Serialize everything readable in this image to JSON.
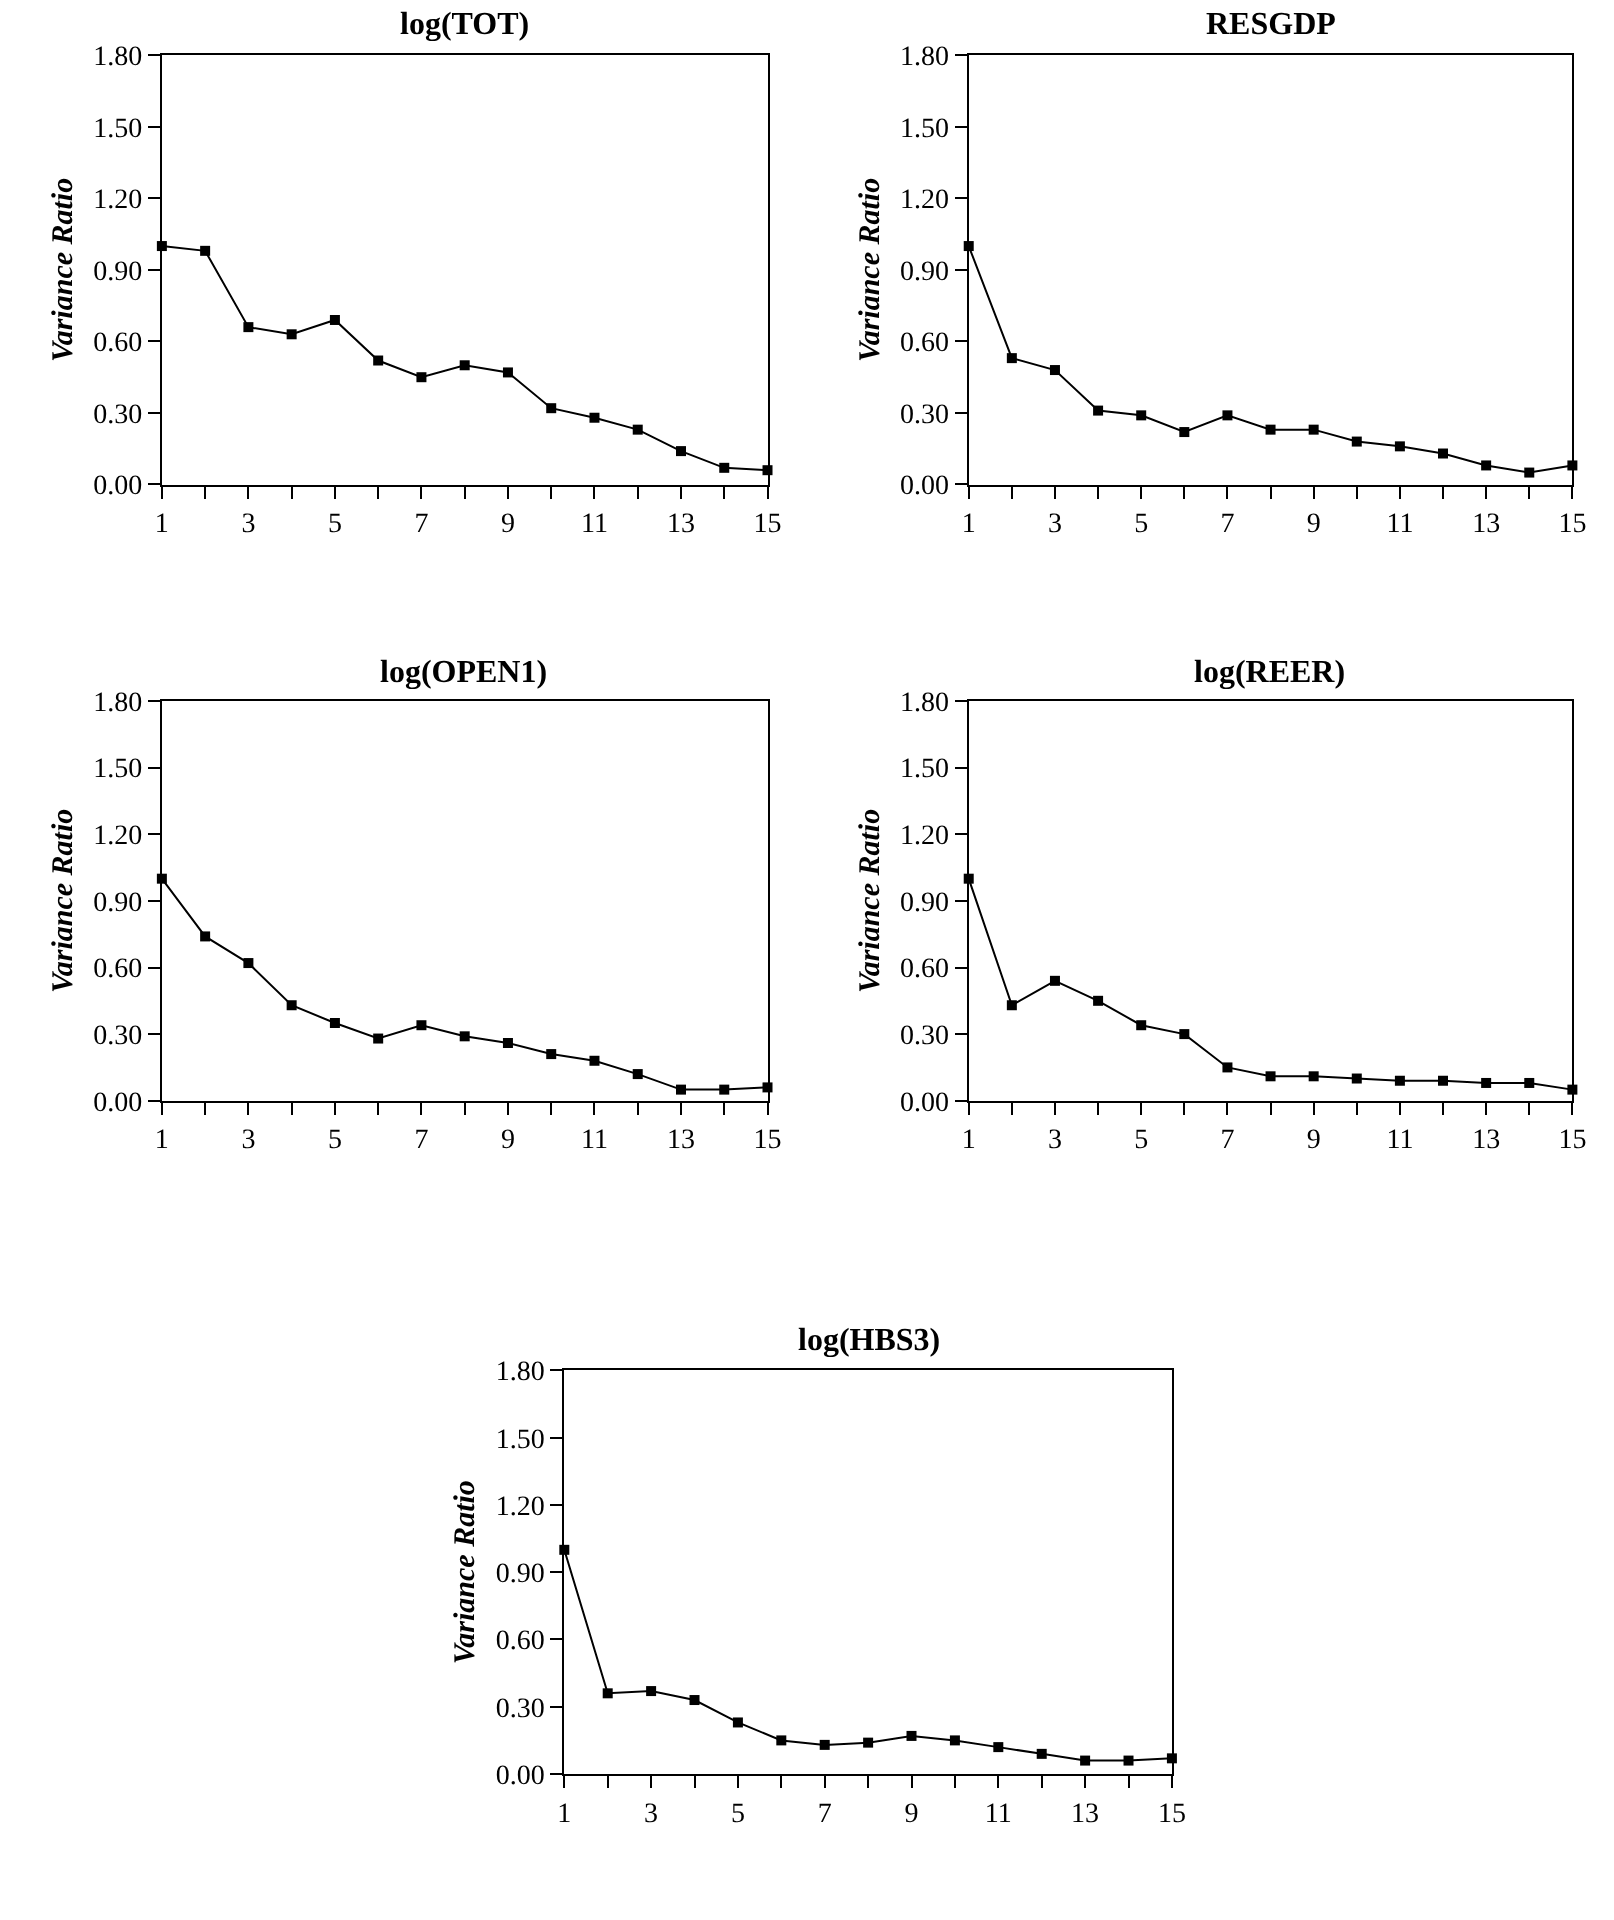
{
  "chart_data": [
    {
      "type": "line",
      "title": "log(TOT)",
      "ylabel": "Variance Ratio",
      "x": [
        1,
        2,
        3,
        4,
        5,
        6,
        7,
        8,
        9,
        10,
        11,
        12,
        13,
        14,
        15
      ],
      "series": [
        {
          "color": "#000000",
          "values": [
            1.0,
            0.98,
            0.66,
            0.63,
            0.69,
            0.52,
            0.45,
            0.5,
            0.47,
            0.32,
            0.28,
            0.23,
            0.14,
            0.07,
            0.06
          ]
        }
      ],
      "xlim": [
        1,
        15
      ],
      "xticks": [
        1,
        {
          "value": 2,
          "label": null
        },
        3,
        {
          "value": 4,
          "label": null
        },
        5,
        {
          "value": 6,
          "label": null
        },
        7,
        {
          "value": 8,
          "label": null
        },
        9,
        {
          "value": 10,
          "label": null
        },
        11,
        {
          "value": 12,
          "label": null
        },
        13,
        {
          "value": 14,
          "label": null
        },
        15
      ],
      "ylim": [
        0,
        1.8
      ],
      "yticks": [
        {
          "value": 0,
          "label": "0.00"
        },
        {
          "value": 0.3,
          "label": "0.30"
        },
        {
          "value": 0.6,
          "label": "0.60"
        },
        {
          "value": 0.9,
          "label": "0.90"
        },
        {
          "value": 1.2,
          "label": "1.20"
        },
        {
          "value": 1.5,
          "label": "1.50"
        },
        {
          "value": 1.8,
          "label": "1.80"
        }
      ],
      "marker": "square",
      "line_style": "solid"
    },
    {
      "type": "line",
      "title": "RESGDP",
      "ylabel": "Variance Ratio",
      "x": [
        1,
        2,
        3,
        4,
        5,
        6,
        7,
        8,
        9,
        10,
        11,
        12,
        13,
        14,
        15
      ],
      "series": [
        {
          "color": "#000000",
          "values": [
            1.0,
            0.53,
            0.48,
            0.31,
            0.29,
            0.22,
            0.29,
            0.23,
            0.23,
            0.18,
            0.16,
            0.13,
            0.08,
            0.05,
            0.08
          ]
        }
      ],
      "xlim": [
        1,
        15
      ],
      "xticks": [
        1,
        {
          "value": 2,
          "label": null
        },
        3,
        {
          "value": 4,
          "label": null
        },
        5,
        {
          "value": 6,
          "label": null
        },
        7,
        {
          "value": 8,
          "label": null
        },
        9,
        {
          "value": 10,
          "label": null
        },
        11,
        {
          "value": 12,
          "label": null
        },
        13,
        {
          "value": 14,
          "label": null
        },
        15
      ],
      "ylim": [
        0,
        1.8
      ],
      "yticks": [
        {
          "value": 0,
          "label": "0.00"
        },
        {
          "value": 0.3,
          "label": "0.30"
        },
        {
          "value": 0.6,
          "label": "0.60"
        },
        {
          "value": 0.9,
          "label": "0.90"
        },
        {
          "value": 1.2,
          "label": "1.20"
        },
        {
          "value": 1.5,
          "label": "1.50"
        },
        {
          "value": 1.8,
          "label": "1.80"
        }
      ],
      "marker": "square",
      "line_style": "solid"
    },
    {
      "type": "line",
      "title": "log(OPEN1)",
      "ylabel": "Variance Ratio",
      "x": [
        1,
        2,
        3,
        4,
        5,
        6,
        7,
        8,
        9,
        10,
        11,
        12,
        13,
        14,
        15
      ],
      "series": [
        {
          "color": "#000000",
          "values": [
            1.0,
            0.74,
            0.62,
            0.43,
            0.35,
            0.28,
            0.34,
            0.29,
            0.26,
            0.21,
            0.18,
            0.12,
            0.05,
            0.05,
            0.06
          ]
        }
      ],
      "xlim": [
        1,
        15
      ],
      "xticks": [
        1,
        {
          "value": 2,
          "label": null
        },
        3,
        {
          "value": 4,
          "label": null
        },
        5,
        {
          "value": 6,
          "label": null
        },
        7,
        {
          "value": 8,
          "label": null
        },
        9,
        {
          "value": 10,
          "label": null
        },
        11,
        {
          "value": 12,
          "label": null
        },
        13,
        {
          "value": 14,
          "label": null
        },
        15
      ],
      "ylim": [
        0,
        1.8
      ],
      "yticks": [
        {
          "value": 0,
          "label": "0.00"
        },
        {
          "value": 0.3,
          "label": "0.30"
        },
        {
          "value": 0.6,
          "label": "0.60"
        },
        {
          "value": 0.9,
          "label": "0.90"
        },
        {
          "value": 1.2,
          "label": "1.20"
        },
        {
          "value": 1.5,
          "label": "1.50"
        },
        {
          "value": 1.8,
          "label": "1.80"
        }
      ],
      "marker": "square",
      "line_style": "solid"
    },
    {
      "type": "line",
      "title": "log(REER)",
      "ylabel": "Variance Ratio",
      "x": [
        1,
        2,
        3,
        4,
        5,
        6,
        7,
        8,
        9,
        10,
        11,
        12,
        13,
        14,
        15
      ],
      "series": [
        {
          "color": "#000000",
          "values": [
            1.0,
            0.43,
            0.54,
            0.45,
            0.34,
            0.3,
            0.15,
            0.11,
            0.11,
            0.1,
            0.09,
            0.09,
            0.08,
            0.08,
            0.05
          ]
        }
      ],
      "xlim": [
        1,
        15
      ],
      "xticks": [
        1,
        {
          "value": 2,
          "label": null
        },
        3,
        {
          "value": 4,
          "label": null
        },
        5,
        {
          "value": 6,
          "label": null
        },
        7,
        {
          "value": 8,
          "label": null
        },
        9,
        {
          "value": 10,
          "label": null
        },
        11,
        {
          "value": 12,
          "label": null
        },
        13,
        {
          "value": 14,
          "label": null
        },
        15
      ],
      "ylim": [
        0,
        1.8
      ],
      "yticks": [
        {
          "value": 0,
          "label": "0.00"
        },
        {
          "value": 0.3,
          "label": "0.30"
        },
        {
          "value": 0.6,
          "label": "0.60"
        },
        {
          "value": 0.9,
          "label": "0.90"
        },
        {
          "value": 1.2,
          "label": "1.20"
        },
        {
          "value": 1.5,
          "label": "1.50"
        },
        {
          "value": 1.8,
          "label": "1.80"
        }
      ],
      "marker": "square",
      "line_style": "solid"
    },
    {
      "type": "line",
      "title": "log(HBS3)",
      "ylabel": "Variance Ratio",
      "x": [
        1,
        2,
        3,
        4,
        5,
        6,
        7,
        8,
        9,
        10,
        11,
        12,
        13,
        14,
        15
      ],
      "series": [
        {
          "color": "#000000",
          "values": [
            1.0,
            0.36,
            0.37,
            0.33,
            0.23,
            0.15,
            0.13,
            0.14,
            0.17,
            0.15,
            0.12,
            0.09,
            0.06,
            0.06,
            0.07
          ]
        }
      ],
      "xlim": [
        1,
        15
      ],
      "xticks": [
        1,
        {
          "value": 2,
          "label": null
        },
        3,
        {
          "value": 4,
          "label": null
        },
        5,
        {
          "value": 6,
          "label": null
        },
        7,
        {
          "value": 8,
          "label": null
        },
        9,
        {
          "value": 10,
          "label": null
        },
        11,
        {
          "value": 12,
          "label": null
        },
        13,
        {
          "value": 14,
          "label": null
        },
        15
      ],
      "ylim": [
        0,
        1.8
      ],
      "yticks": [
        {
          "value": 0,
          "label": "0.00"
        },
        {
          "value": 0.3,
          "label": "0.30"
        },
        {
          "value": 0.6,
          "label": "0.60"
        },
        {
          "value": 0.9,
          "label": "0.90"
        },
        {
          "value": 1.2,
          "label": "1.20"
        },
        {
          "value": 1.5,
          "label": "1.50"
        },
        {
          "value": 1.8,
          "label": "1.80"
        }
      ],
      "marker": "square",
      "line_style": "solid"
    }
  ]
}
